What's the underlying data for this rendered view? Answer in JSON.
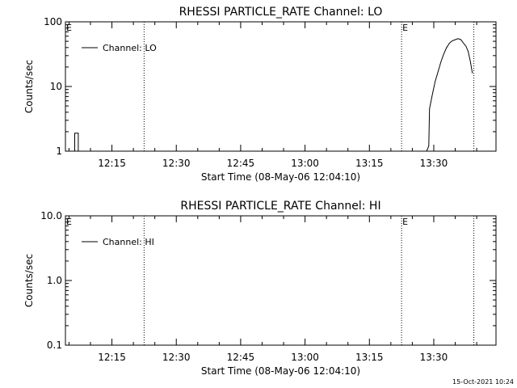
{
  "footer": {
    "timestamp": "15-Oct-2021 10:24"
  },
  "chart_data": [
    {
      "type": "line",
      "title": "RHESSI PARTICLE_RATE Channel: LO",
      "xlabel": "Start Time (08-May-06 12:04:10)",
      "ylabel": "Counts/sec",
      "y_scale": "log",
      "ylim": [
        1,
        100
      ],
      "y_ticks": [
        1,
        10,
        100
      ],
      "y_tick_labels": [
        "1",
        "10",
        "100"
      ],
      "xlim": [
        "12:04:10",
        "13:44:30"
      ],
      "x_ticks": [
        "12:15",
        "12:30",
        "12:45",
        "13:00",
        "13:15",
        "13:30"
      ],
      "x_tick_labels": [
        "12:15",
        "12:30",
        "12:45",
        "13:00",
        "13:15",
        "13:30"
      ],
      "grid": false,
      "legend": {
        "position": "top-left",
        "entries": [
          "Channel: LO"
        ]
      },
      "markers": [
        {
          "x": "12:04:10",
          "label": "E"
        },
        {
          "x": "12:22:30",
          "label": ""
        },
        {
          "x": "13:22:30",
          "label": "E"
        },
        {
          "x": "13:39:20",
          "label": ""
        }
      ],
      "series": [
        {
          "name": "Channel: LO",
          "segments": [
            {
              "x": [
                "12:06:10",
                "12:06:20",
                "12:06:20",
                "12:07:10",
                "12:07:10",
                "12:07:20"
              ],
              "y": [
                1,
                1,
                1.9,
                1.9,
                1,
                1
              ]
            },
            {
              "x": [
                "13:28:20",
                "13:28:50",
                "13:29:00",
                "13:29:40",
                "13:30:20",
                "13:31:00",
                "13:31:40",
                "13:32:20",
                "13:33:00",
                "13:33:40",
                "13:34:20",
                "13:35:00",
                "13:35:40",
                "13:36:20",
                "13:37:00",
                "13:37:30",
                "13:38:00",
                "13:38:30",
                "13:39:00"
              ],
              "y": [
                1,
                1.2,
                4.5,
                7.5,
                12,
                17,
                24,
                32,
                40,
                47,
                51,
                53,
                55,
                53,
                46,
                42,
                35,
                25,
                16
              ]
            }
          ]
        }
      ]
    },
    {
      "type": "line",
      "title": "RHESSI PARTICLE_RATE Channel: HI",
      "xlabel": "Start Time (08-May-06 12:04:10)",
      "ylabel": "Counts/sec",
      "y_scale": "log",
      "ylim": [
        0.1,
        10
      ],
      "y_ticks": [
        0.1,
        1,
        10
      ],
      "y_tick_labels": [
        "0.1",
        "1.0",
        "10.0"
      ],
      "xlim": [
        "12:04:10",
        "13:44:30"
      ],
      "x_ticks": [
        "12:15",
        "12:30",
        "12:45",
        "13:00",
        "13:15",
        "13:30"
      ],
      "x_tick_labels": [
        "12:15",
        "12:30",
        "12:45",
        "13:00",
        "13:15",
        "13:30"
      ],
      "grid": false,
      "legend": {
        "position": "top-left",
        "entries": [
          "Channel: HI"
        ]
      },
      "markers": [
        {
          "x": "12:04:10",
          "label": "E"
        },
        {
          "x": "12:22:30",
          "label": ""
        },
        {
          "x": "13:22:30",
          "label": "E"
        },
        {
          "x": "13:39:20",
          "label": ""
        }
      ],
      "series": [
        {
          "name": "Channel: HI",
          "segments": []
        }
      ]
    }
  ]
}
